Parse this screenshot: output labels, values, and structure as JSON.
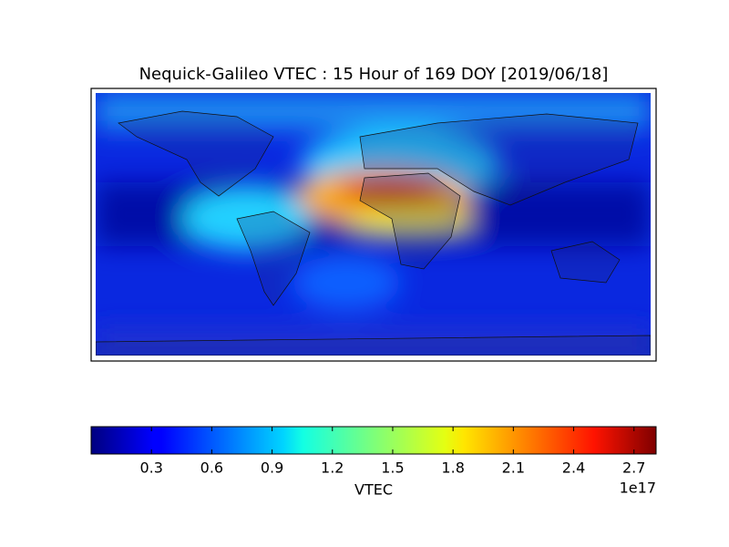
{
  "chart_data": {
    "type": "heatmap",
    "title": "Nequick-Galileo VTEC : 15 Hour of 169 DOY [2019/06/18]",
    "colorbar_label": "VTEC",
    "colorbar_offset_label": "1e17",
    "colormap": "jet",
    "clim": [
      0.0,
      2.81
    ],
    "colorbar_ticks": [
      0.3,
      0.6,
      0.9,
      1.2,
      1.5,
      1.8,
      2.1,
      2.4,
      2.7
    ]
  }
}
